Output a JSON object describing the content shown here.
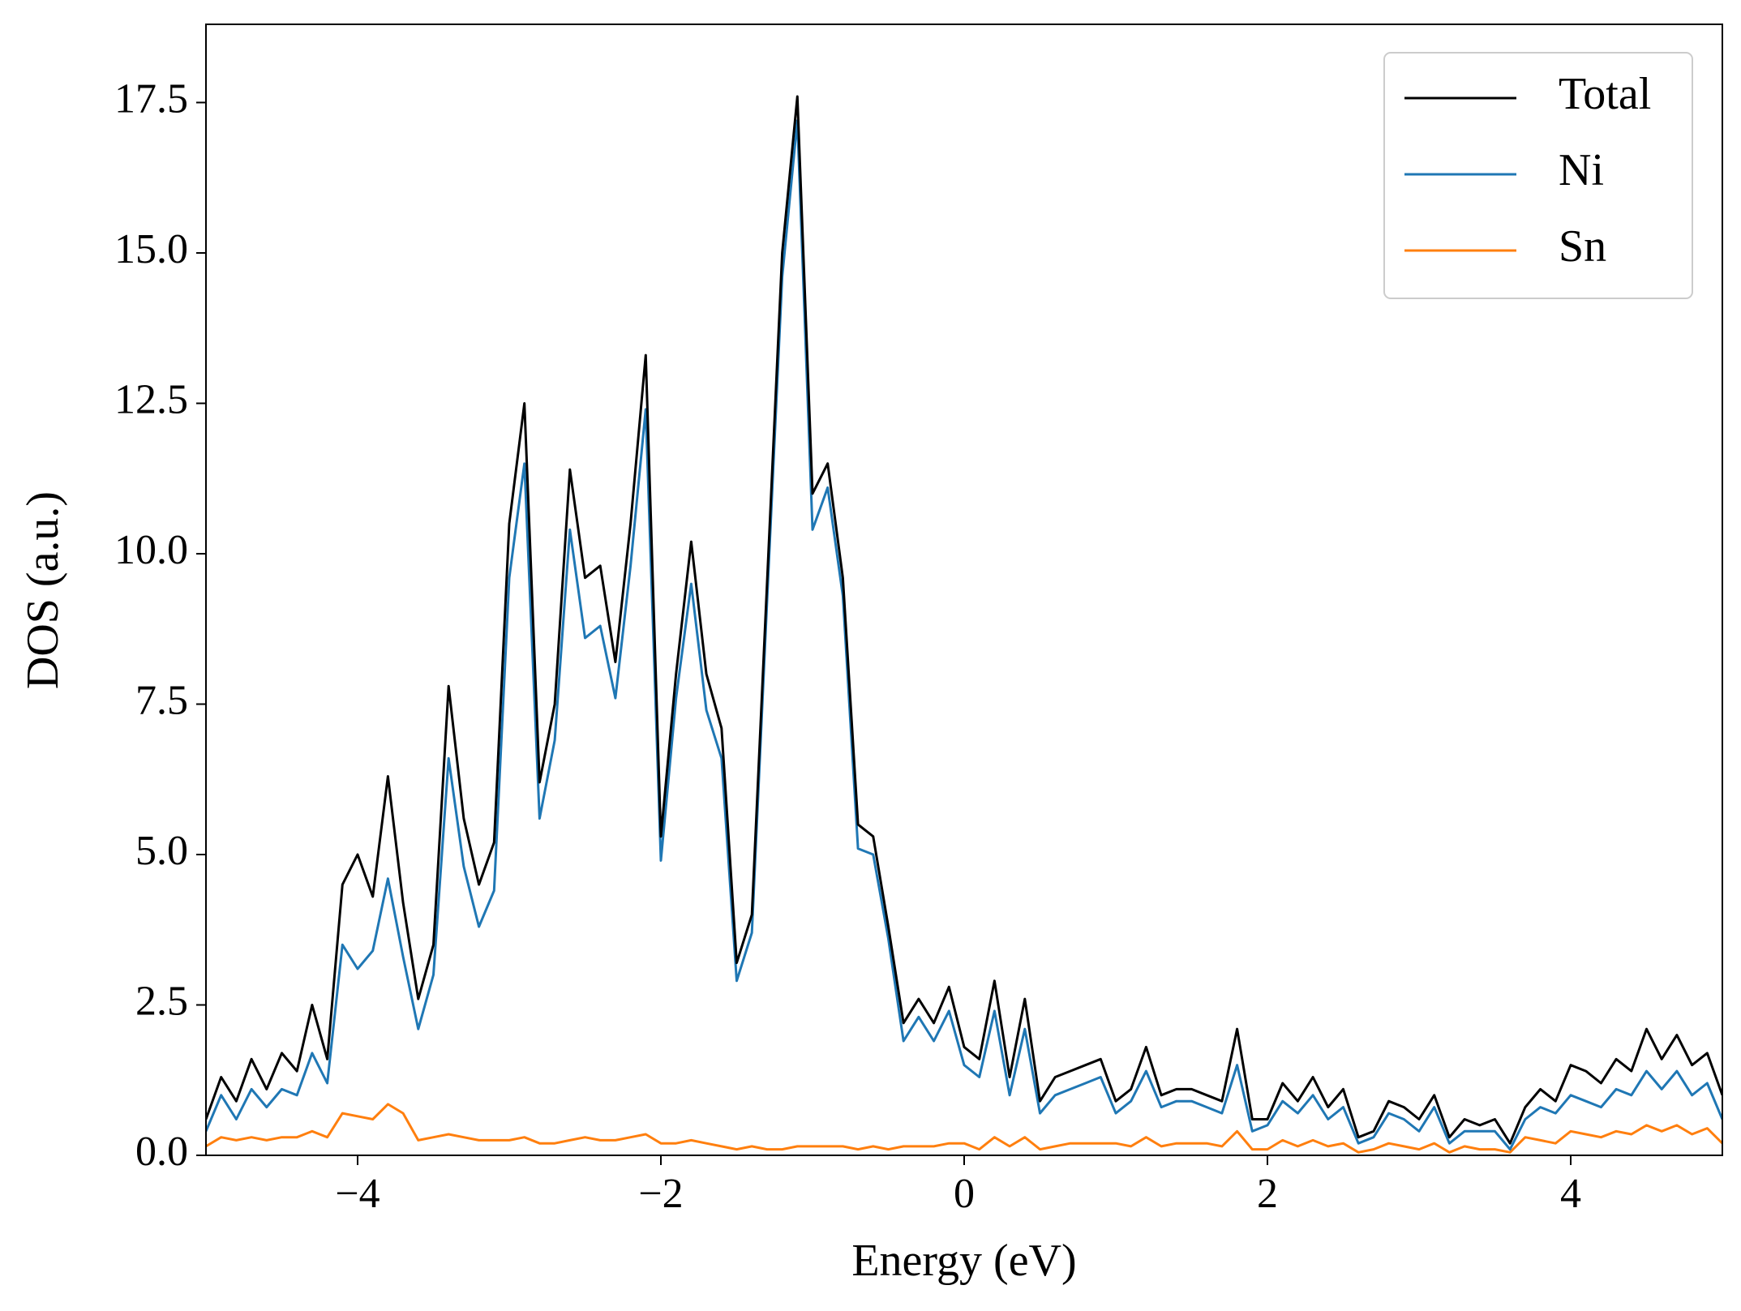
{
  "chart_data": {
    "type": "line",
    "xlabel": "Energy (eV)",
    "ylabel": "DOS (a.u.)",
    "x": [
      -5.0,
      -4.9,
      -4.8,
      -4.7,
      -4.6,
      -4.5,
      -4.4,
      -4.3,
      -4.2,
      -4.1,
      -4.0,
      -3.9,
      -3.8,
      -3.7,
      -3.6,
      -3.5,
      -3.4,
      -3.3,
      -3.2,
      -3.1,
      -3.0,
      -2.9,
      -2.8,
      -2.7,
      -2.6,
      -2.5,
      -2.4,
      -2.3,
      -2.2,
      -2.1,
      -2.0,
      -1.9,
      -1.8,
      -1.7,
      -1.6,
      -1.5,
      -1.4,
      -1.3,
      -1.2,
      -1.1,
      -1.0,
      -0.9,
      -0.8,
      -0.7,
      -0.6,
      -0.5,
      -0.4,
      -0.3,
      -0.2,
      -0.1,
      0.0,
      0.1,
      0.2,
      0.3,
      0.4,
      0.5,
      0.6,
      0.7,
      0.8,
      0.9,
      1.0,
      1.1,
      1.2,
      1.3,
      1.4,
      1.5,
      1.6,
      1.7,
      1.8,
      1.9,
      2.0,
      2.1,
      2.2,
      2.3,
      2.4,
      2.5,
      2.6,
      2.7,
      2.8,
      2.9,
      3.0,
      3.1,
      3.2,
      3.3,
      3.4,
      3.5,
      3.6,
      3.7,
      3.8,
      3.9,
      4.0,
      4.1,
      4.2,
      4.3,
      4.4,
      4.5,
      4.6,
      4.7,
      4.8,
      4.9,
      5.0
    ],
    "series": [
      {
        "name": "Total",
        "color": "#000000",
        "values": [
          0.6,
          1.3,
          0.9,
          1.6,
          1.1,
          1.7,
          1.4,
          2.5,
          1.6,
          4.5,
          5.0,
          4.3,
          6.3,
          4.2,
          2.6,
          3.5,
          7.8,
          5.6,
          4.5,
          5.2,
          10.5,
          12.5,
          6.2,
          7.5,
          11.4,
          9.6,
          9.8,
          8.2,
          10.5,
          13.3,
          5.3,
          8.0,
          10.2,
          8.0,
          7.1,
          3.2,
          4.0,
          9.5,
          15.0,
          17.6,
          11.0,
          11.5,
          9.6,
          5.5,
          5.3,
          3.8,
          2.2,
          2.6,
          2.2,
          2.8,
          1.8,
          1.6,
          2.9,
          1.3,
          2.6,
          0.9,
          1.3,
          1.4,
          1.5,
          1.6,
          0.9,
          1.1,
          1.8,
          1.0,
          1.1,
          1.1,
          1.0,
          0.9,
          2.1,
          0.6,
          0.6,
          1.2,
          0.9,
          1.3,
          0.8,
          1.1,
          0.3,
          0.4,
          0.9,
          0.8,
          0.6,
          1.0,
          0.3,
          0.6,
          0.5,
          0.6,
          0.2,
          0.8,
          1.1,
          0.9,
          1.5,
          1.4,
          1.2,
          1.6,
          1.4,
          2.1,
          1.6,
          2.0,
          1.5,
          1.7,
          1.0
        ]
      },
      {
        "name": "Ni",
        "color": "#1f77b4",
        "values": [
          0.4,
          1.0,
          0.6,
          1.1,
          0.8,
          1.1,
          1.0,
          1.7,
          1.2,
          3.5,
          3.1,
          3.4,
          4.6,
          3.3,
          2.1,
          3.0,
          6.6,
          4.8,
          3.8,
          4.4,
          9.6,
          11.5,
          5.6,
          6.9,
          10.4,
          8.6,
          8.8,
          7.6,
          9.8,
          12.4,
          4.9,
          7.6,
          9.5,
          7.4,
          6.6,
          2.9,
          3.7,
          9.2,
          14.6,
          17.2,
          10.4,
          11.1,
          9.3,
          5.1,
          5.0,
          3.6,
          1.9,
          2.3,
          1.9,
          2.4,
          1.5,
          1.3,
          2.4,
          1.0,
          2.1,
          0.7,
          1.0,
          1.1,
          1.2,
          1.3,
          0.7,
          0.9,
          1.4,
          0.8,
          0.9,
          0.9,
          0.8,
          0.7,
          1.5,
          0.4,
          0.5,
          0.9,
          0.7,
          1.0,
          0.6,
          0.8,
          0.2,
          0.3,
          0.7,
          0.6,
          0.4,
          0.8,
          0.2,
          0.4,
          0.4,
          0.4,
          0.1,
          0.6,
          0.8,
          0.7,
          1.0,
          0.9,
          0.8,
          1.1,
          1.0,
          1.4,
          1.1,
          1.4,
          1.0,
          1.2,
          0.6
        ]
      },
      {
        "name": "Sn",
        "color": "#ff7f0e",
        "values": [
          0.15,
          0.3,
          0.25,
          0.3,
          0.25,
          0.3,
          0.3,
          0.4,
          0.3,
          0.7,
          0.65,
          0.6,
          0.85,
          0.7,
          0.25,
          0.3,
          0.35,
          0.3,
          0.25,
          0.25,
          0.25,
          0.3,
          0.2,
          0.2,
          0.25,
          0.3,
          0.25,
          0.25,
          0.3,
          0.35,
          0.2,
          0.2,
          0.25,
          0.2,
          0.15,
          0.1,
          0.15,
          0.1,
          0.1,
          0.15,
          0.15,
          0.15,
          0.15,
          0.1,
          0.15,
          0.1,
          0.15,
          0.15,
          0.15,
          0.2,
          0.2,
          0.1,
          0.3,
          0.15,
          0.3,
          0.1,
          0.15,
          0.2,
          0.2,
          0.2,
          0.2,
          0.15,
          0.3,
          0.15,
          0.2,
          0.2,
          0.2,
          0.15,
          0.4,
          0.1,
          0.1,
          0.25,
          0.15,
          0.25,
          0.15,
          0.2,
          0.05,
          0.1,
          0.2,
          0.15,
          0.1,
          0.2,
          0.05,
          0.15,
          0.1,
          0.1,
          0.05,
          0.3,
          0.25,
          0.2,
          0.4,
          0.35,
          0.3,
          0.4,
          0.35,
          0.5,
          0.4,
          0.5,
          0.35,
          0.45,
          0.2
        ]
      }
    ],
    "xlim": [
      -5,
      5
    ],
    "xticks": [
      {
        "value": -4,
        "label": "−4"
      },
      {
        "value": -2,
        "label": "−2"
      },
      0,
      2,
      4
    ],
    "ylim": [
      0,
      18.8
    ],
    "yticks": [
      {
        "value": 0,
        "label": "0.0"
      },
      2.5,
      {
        "value": 5,
        "label": "5.0"
      },
      7.5,
      {
        "value": 10,
        "label": "10.0"
      },
      12.5,
      {
        "value": 15,
        "label": "15.0"
      },
      17.5
    ],
    "legend": "upper right",
    "grid": false
  }
}
